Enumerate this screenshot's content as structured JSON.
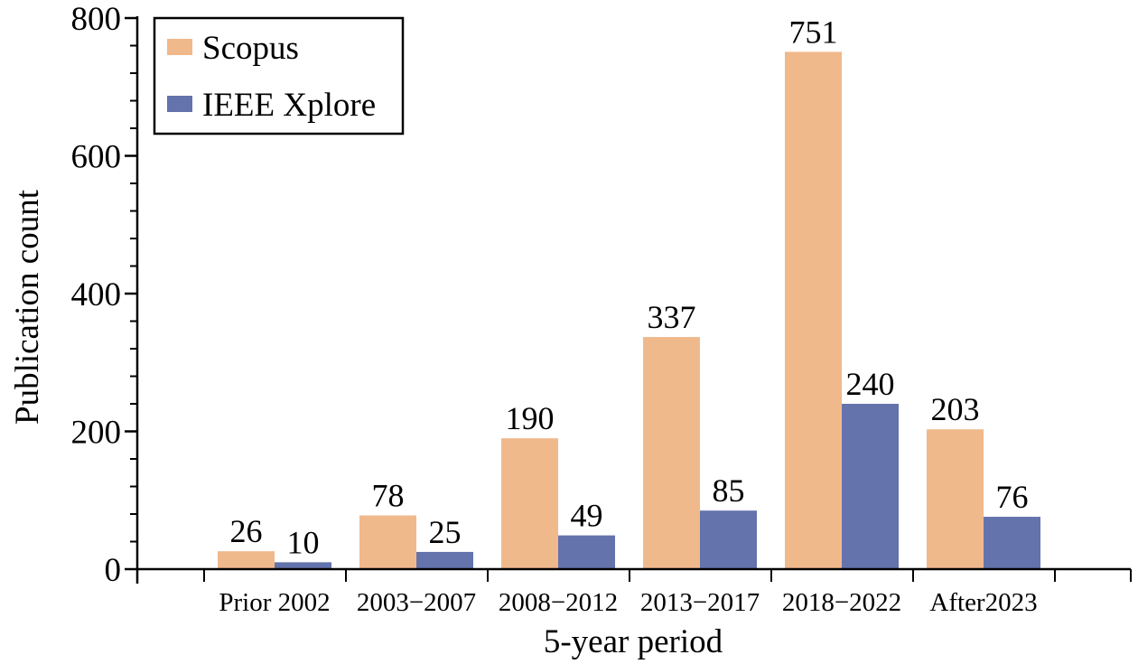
{
  "chart_data": {
    "type": "bar",
    "categories": [
      "Prior 2002",
      "2003−2007",
      "2008−2012",
      "2013−2017",
      "2018−2022",
      "After2023"
    ],
    "series": [
      {
        "name": "Scopus",
        "values": [
          26,
          78,
          190,
          337,
          751,
          203
        ],
        "color": "#F0B98C"
      },
      {
        "name": "IEEE Xplore",
        "values": [
          10,
          25,
          49,
          85,
          240,
          76
        ],
        "color": "#6473AC"
      }
    ],
    "title": "",
    "xlabel": "5-year period",
    "ylabel": "Publication count",
    "ylim": [
      0,
      800
    ],
    "yticks": [
      0,
      200,
      400,
      600,
      800
    ],
    "grid": false,
    "legend_position": "top-left",
    "show_data_labels": true
  }
}
